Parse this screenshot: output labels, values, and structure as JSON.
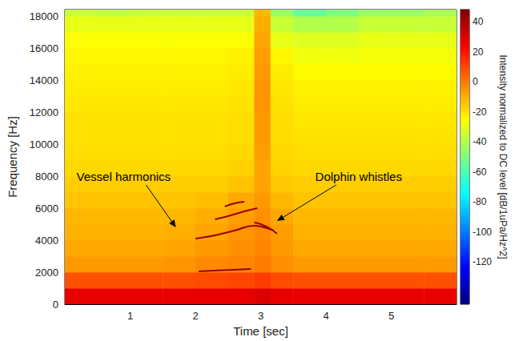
{
  "chart_data": {
    "type": "heatmap",
    "xlabel": "Time [sec]",
    "ylabel": "Frequency [Hz]",
    "xlim": [
      0,
      6
    ],
    "xticks": [
      1,
      2,
      3,
      4,
      5
    ],
    "ylim": [
      0,
      18400
    ],
    "yticks": [
      0,
      2000,
      4000,
      6000,
      8000,
      10000,
      12000,
      14000,
      16000,
      18000
    ],
    "colorbar": {
      "label": "Intensity normalized to DC level [dB/1uPa/Hz^2]",
      "range": [
        -148,
        48
      ],
      "ticks": [
        -120,
        -100,
        -80,
        -60,
        -40,
        -20,
        0,
        20,
        40
      ]
    },
    "time_bins": [
      0,
      0.5,
      1,
      1.5,
      2,
      2.5,
      2.9,
      3.15,
      3.5,
      4,
      4.5,
      5,
      5.5,
      6
    ],
    "freq_bins": [
      0,
      1000,
      2000,
      3000,
      4000,
      5000,
      6000,
      7000,
      8000,
      9000,
      10000,
      11000,
      12000,
      13000,
      14000,
      15000,
      16000,
      17000,
      18000,
      18400
    ],
    "intensity": [
      [
        28,
        28,
        28,
        28,
        28,
        28,
        30,
        28,
        28,
        28,
        28,
        28,
        28
      ],
      [
        8,
        8,
        8,
        8,
        9,
        10,
        12,
        9,
        8,
        8,
        8,
        8,
        8
      ],
      [
        -6,
        -6,
        -6,
        -5,
        -3,
        -2,
        0,
        -4,
        -6,
        -6,
        -6,
        -6,
        -6
      ],
      [
        -9,
        -9,
        -9,
        -8,
        -6,
        -4,
        -2,
        -6,
        -9,
        -9,
        -9,
        -9,
        -9
      ],
      [
        -11,
        -11,
        -11,
        -10,
        -8,
        -5,
        -3,
        -7,
        -11,
        -11,
        -11,
        -11,
        -11
      ],
      [
        -12,
        -12,
        -12,
        -12,
        -10,
        -7,
        -4,
        -9,
        -12,
        -12,
        -12,
        -12,
        -12
      ],
      [
        -14,
        -14,
        -14,
        -14,
        -13,
        -9,
        -6,
        -12,
        -14,
        -14,
        -14,
        -14,
        -14
      ],
      [
        -16,
        -16,
        -16,
        -16,
        -16,
        -14,
        -8,
        -15,
        -16,
        -16,
        -16,
        -16,
        -16
      ],
      [
        -18,
        -18,
        -18,
        -18,
        -18,
        -17,
        -8,
        -17,
        -18,
        -18,
        -18,
        -18,
        -18
      ],
      [
        -19,
        -19,
        -19,
        -19,
        -19,
        -18,
        -7,
        -18,
        -19,
        -19,
        -19,
        -19,
        -19
      ],
      [
        -20,
        -20,
        -20,
        -20,
        -20,
        -19,
        -6,
        -19,
        -20,
        -20,
        -20,
        -20,
        -20
      ],
      [
        -20,
        -20,
        -20,
        -20,
        -20,
        -19,
        -6,
        -19,
        -21,
        -21,
        -21,
        -21,
        -21
      ],
      [
        -21,
        -21,
        -21,
        -21,
        -21,
        -20,
        -5,
        -20,
        -22,
        -22,
        -22,
        -22,
        -22
      ],
      [
        -22,
        -22,
        -22,
        -22,
        -22,
        -21,
        -5,
        -21,
        -23,
        -23,
        -23,
        -23,
        -23
      ],
      [
        -23,
        -23,
        -23,
        -23,
        -23,
        -22,
        -6,
        -22,
        -25,
        -25,
        -25,
        -25,
        -25
      ],
      [
        -24,
        -24,
        -24,
        -24,
        -24,
        -23,
        -7,
        -24,
        -28,
        -28,
        -27,
        -27,
        -27
      ],
      [
        -26,
        -26,
        -26,
        -26,
        -26,
        -26,
        -8,
        -30,
        -32,
        -32,
        -30,
        -30,
        -30
      ],
      [
        -30,
        -30,
        -30,
        -30,
        -30,
        -30,
        -10,
        -36,
        -40,
        -40,
        -36,
        -36,
        -36
      ],
      [
        -36,
        -38,
        -36,
        -36,
        -36,
        -36,
        -12,
        -45,
        -55,
        -50,
        -45,
        -45,
        -42
      ]
    ],
    "whistles": [
      {
        "x": [
          2.05,
          2.3,
          2.6,
          2.85
        ],
        "y": [
          2050,
          2100,
          2150,
          2200
        ]
      },
      {
        "x": [
          2.0,
          2.3,
          2.6,
          2.9,
          3.05,
          3.2
        ],
        "y": [
          4100,
          4300,
          4600,
          4900,
          4800,
          4600
        ]
      },
      {
        "x": [
          2.3,
          2.5,
          2.75,
          2.95
        ],
        "y": [
          5300,
          5500,
          5800,
          6000
        ]
      },
      {
        "x": [
          2.45,
          2.6,
          2.75
        ],
        "y": [
          6100,
          6300,
          6400
        ]
      },
      {
        "x": [
          2.9,
          3.0,
          3.15,
          3.25
        ],
        "y": [
          5100,
          5000,
          4700,
          4400
        ]
      }
    ],
    "annotations": [
      {
        "text": "Vessel harmonics",
        "x": 0.9,
        "y": 8000,
        "arrow_to": [
          1.7,
          4800
        ]
      },
      {
        "text": "Dolphin whistles",
        "x": 4.5,
        "y": 8000,
        "arrow_to": [
          3.25,
          5200
        ]
      }
    ]
  }
}
